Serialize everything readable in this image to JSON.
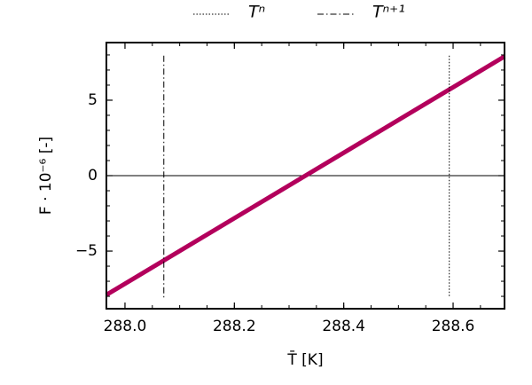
{
  "chart_data": {
    "type": "line",
    "xlabel": "T̄ [K]",
    "ylabel": "F · 10⁻⁶ [-]",
    "xlim": [
      287.966,
      288.694
    ],
    "ylim": [
      -8.82,
      8.82
    ],
    "xticks": [
      {
        "value": 288.0,
        "label": "288.0"
      },
      {
        "value": 288.2,
        "label": "288.2"
      },
      {
        "value": 288.4,
        "label": "288.4"
      },
      {
        "value": 288.6,
        "label": "288.6"
      }
    ],
    "yticks": [
      {
        "value": -5,
        "label": "−5"
      },
      0,
      5
    ],
    "hline": 0,
    "series": [
      {
        "color": "#b3005c",
        "x": [
          287.966,
          288.694
        ],
        "values": [
          -7.9,
          7.9
        ]
      },
      {
        "name": "Tⁿ",
        "color": "#000000",
        "dash": "1.5,2",
        "x": [
          288.593,
          288.593
        ],
        "values": [
          7.95,
          -8.1
        ]
      },
      {
        "name": "Tⁿ⁺¹",
        "color": "#000000",
        "dash": "7,3,1.5,3",
        "x": [
          288.071,
          288.071
        ],
        "values": [
          7.95,
          -8.1
        ]
      }
    ]
  }
}
